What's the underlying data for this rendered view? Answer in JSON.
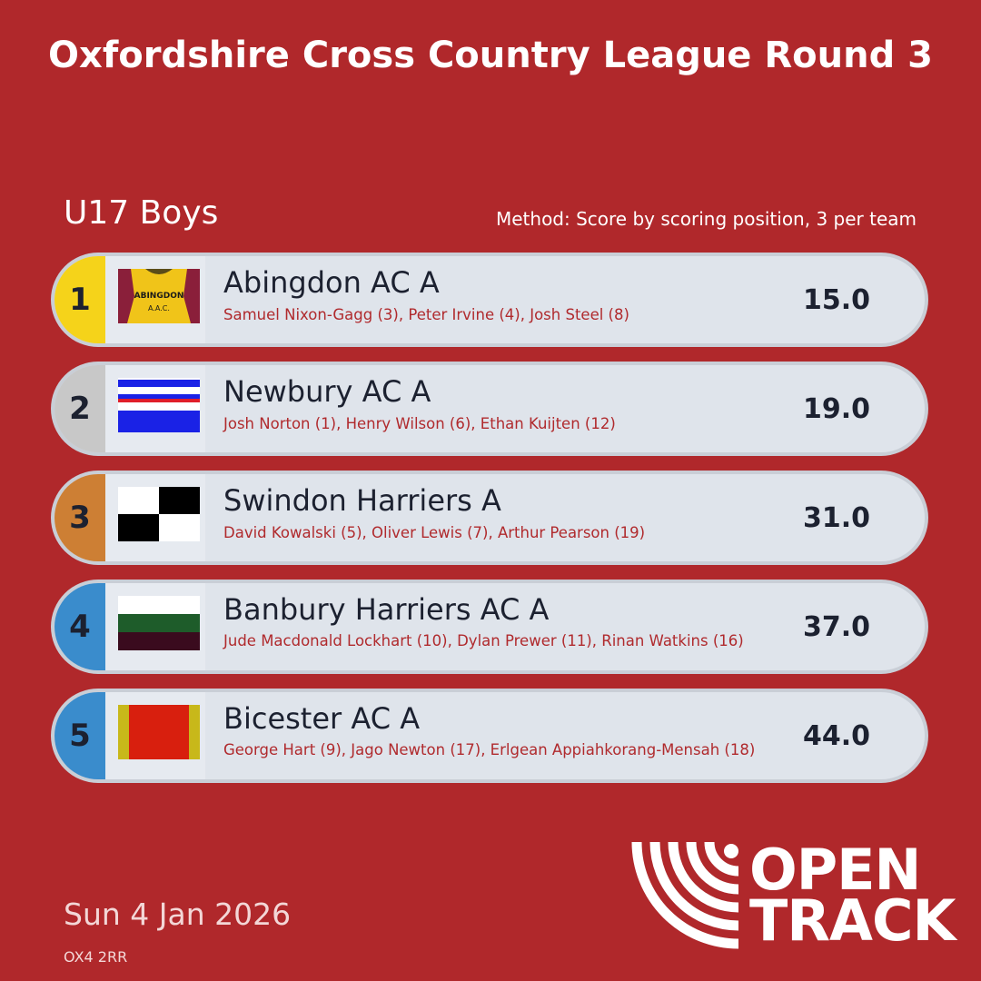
{
  "header": {
    "title": "Oxfordshire Cross Country League Round 3"
  },
  "category": "U17 Boys",
  "method": "Method: Score by scoring position, 3 per team",
  "results": [
    {
      "position": "1",
      "team": "Abingdon AC A",
      "athletes": "Samuel Nixon-Gagg (3), Peter Irvine (4), Josh Steel (8)",
      "score": "15.0",
      "position_color": "#f5d31a",
      "flag_text": "ABINGDON A.A.C."
    },
    {
      "position": "2",
      "team": "Newbury AC A",
      "athletes": "Josh Norton (1), Henry Wilson (6), Ethan Kuijten (12)",
      "score": "19.0",
      "position_color": "#c8c8c8"
    },
    {
      "position": "3",
      "team": "Swindon Harriers A",
      "athletes": "David Kowalski (5), Oliver Lewis (7), Arthur Pearson (19)",
      "score": "31.0",
      "position_color": "#cd7f34"
    },
    {
      "position": "4",
      "team": "Banbury Harriers AC A",
      "athletes": "Jude Macdonald Lockhart (10), Dylan Prewer (11), Rinan Watkins (16)",
      "score": "37.0",
      "position_color": "#3a8ccc"
    },
    {
      "position": "5",
      "team": "Bicester AC A",
      "athletes": "George Hart (9), Jago Newton (17), Erlgean Appiahkorang-Mensah (18)",
      "score": "44.0",
      "position_color": "#3a8ccc"
    }
  ],
  "footer": {
    "date": "Sun 4 Jan 2026",
    "postcode": "OX4 2RR"
  },
  "logo": {
    "line1": "OPEN",
    "line2": "TRACK",
    "icon": "opentrack-track-lanes-icon"
  },
  "colors": {
    "background": "#b0282b",
    "row_background": "#dfe4eb",
    "athlete_text": "#b02a2d",
    "gold": "#f5d31a",
    "silver": "#c8c8c8",
    "bronze": "#cd7f34",
    "other": "#3a8ccc"
  }
}
